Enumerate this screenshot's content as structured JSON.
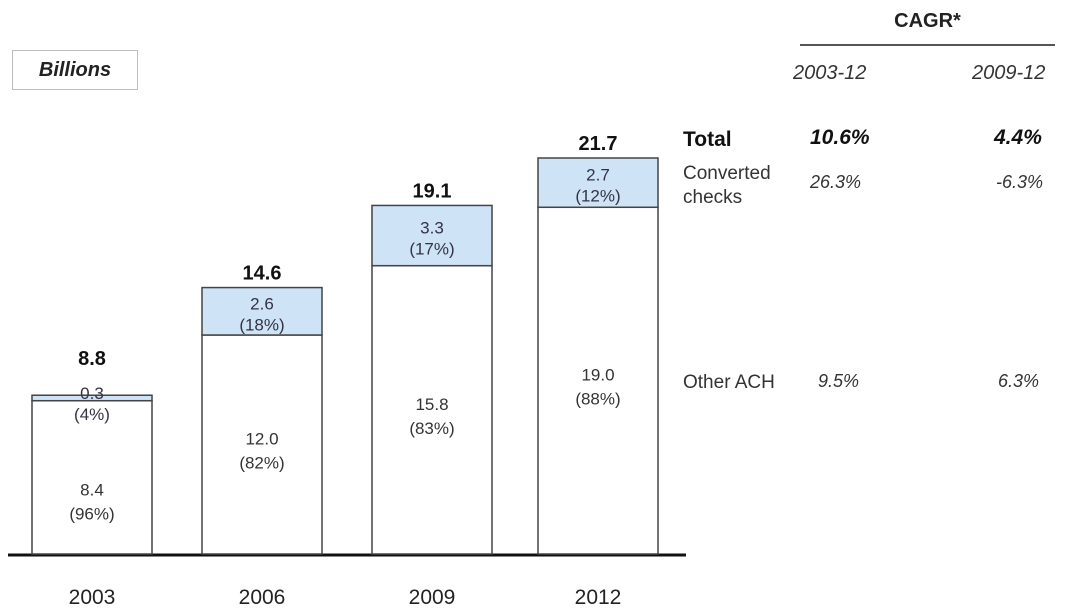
{
  "unit_label": "Billions",
  "cagr": {
    "title": "CAGR*",
    "periods": [
      "2003-12",
      "2009-12"
    ],
    "rows": [
      {
        "label": "Total",
        "values": [
          "10.6%",
          "4.4%"
        ]
      },
      {
        "label": "Converted checks",
        "values": [
          "26.3%",
          "-6.3%"
        ]
      },
      {
        "label": "Other ACH",
        "values": [
          "9.5%",
          "6.3%"
        ]
      }
    ]
  },
  "colors": {
    "converted_checks": "#cfe3f7",
    "other_ach": "#ffffff",
    "outline": "#444444",
    "axis": "#111111"
  },
  "chart_data": {
    "type": "bar",
    "stacked": true,
    "categories": [
      "2003",
      "2006",
      "2009",
      "2012"
    ],
    "totals": [
      8.8,
      14.6,
      19.1,
      21.7
    ],
    "totals_labels": [
      "8.8",
      "14.6",
      "19.1",
      "21.7"
    ],
    "series": [
      {
        "name": "Other ACH",
        "values": [
          8.4,
          12.0,
          15.8,
          19.0
        ],
        "labels": [
          "8.4",
          "12.0",
          "15.8",
          "19.0"
        ],
        "shares": [
          "(96%)",
          "(82%)",
          "(83%)",
          "(88%)"
        ]
      },
      {
        "name": "Converted checks",
        "values": [
          0.3,
          2.6,
          3.3,
          2.7
        ],
        "labels": [
          "0.3",
          "2.6",
          "3.3",
          "2.7"
        ],
        "shares": [
          "(4%)",
          "(18%)",
          "(17%)",
          "(12%)"
        ]
      }
    ],
    "ylim": [
      0,
      21.7
    ],
    "grid": false,
    "legend": "none"
  }
}
